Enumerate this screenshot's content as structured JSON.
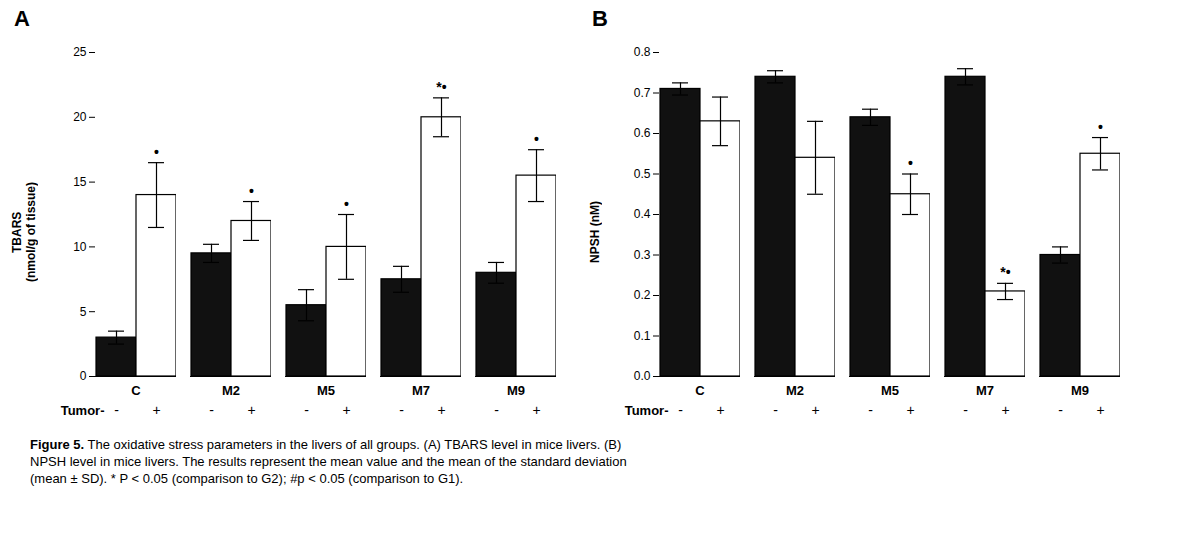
{
  "chart_data": [
    {
      "type": "bar",
      "title": "A",
      "ylabel": "TBARS\n(nmol/g of tissue)",
      "xlabel": "Tumor-",
      "categories": [
        "C",
        "M2",
        "M5",
        "M7",
        "M9"
      ],
      "ylim": [
        0,
        25
      ],
      "yticks": [
        0,
        5,
        10,
        15,
        20,
        25
      ],
      "series": [
        {
          "name": "-",
          "color": "#111111",
          "values": [
            3.0,
            9.5,
            5.5,
            7.5,
            8.0
          ],
          "errors": [
            0.5,
            0.7,
            1.2,
            1.0,
            0.8
          ]
        },
        {
          "name": "+",
          "color": "#ffffff",
          "values": [
            14.0,
            12.0,
            10.0,
            20.0,
            15.5
          ],
          "errors": [
            2.5,
            1.5,
            2.5,
            1.5,
            2.0
          ],
          "annotations": [
            "•",
            "•",
            "•",
            "*•",
            "•"
          ]
        }
      ]
    },
    {
      "type": "bar",
      "title": "B",
      "ylabel": "NPSH (nM)",
      "xlabel": "Tumor-",
      "categories": [
        "C",
        "M2",
        "M5",
        "M7",
        "M9"
      ],
      "ylim": [
        0.0,
        0.8
      ],
      "yticks": [
        {
          "value": 0,
          "label": "0.0"
        },
        0.1,
        0.2,
        0.3,
        0.4,
        0.5,
        0.6,
        0.7,
        0.8
      ],
      "series": [
        {
          "name": "-",
          "color": "#111111",
          "values": [
            0.71,
            0.74,
            0.64,
            0.74,
            0.3
          ],
          "errors": [
            0.015,
            0.015,
            0.02,
            0.02,
            0.02
          ]
        },
        {
          "name": "+",
          "color": "#ffffff",
          "values": [
            0.63,
            0.54,
            0.45,
            0.21,
            0.55
          ],
          "errors": [
            0.06,
            0.09,
            0.05,
            0.02,
            0.04
          ],
          "annotations": [
            null,
            null,
            "•",
            "*•",
            "•"
          ]
        }
      ]
    }
  ],
  "caption": "Figure 5. The oxidative stress parameters in the livers of all groups. (A) TBARS level in mice livers. (B)\nNPSH level in mice livers. The results represent the mean value and the mean of the standard deviation\n(mean ± SD). * P < 0.05 (comparison to G2); #p < 0.05 (comparison to G1)."
}
